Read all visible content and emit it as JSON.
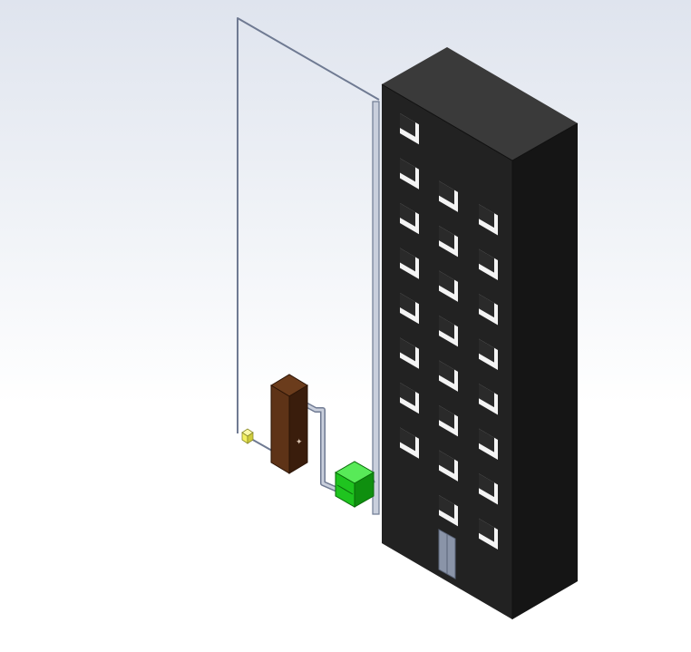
{
  "viewport": {
    "background_top": "#dfe4ee",
    "background_bottom": "#ffffff"
  },
  "model": {
    "building": {
      "front_color": "#222222",
      "side_color": "#151515",
      "top_color": "#3a3a3a",
      "window_frame_color": "#f4f4f4",
      "window_glass_color": "#2a2a2a",
      "door_color": "#8a94a8",
      "floors": 8,
      "window_columns": 3
    },
    "pipe": {
      "color": "#6f7a92",
      "highlight": "#c9cfdc"
    },
    "tank": {
      "front_color": "#3a1d0c",
      "side_color": "#5e3317",
      "top_color": "#6b3c1c"
    },
    "pump": {
      "front_color": "#1fc41f",
      "side_color": "#0f8f0f",
      "top_color": "#58ea58"
    },
    "sensor": {
      "color": "#f3f061"
    }
  }
}
